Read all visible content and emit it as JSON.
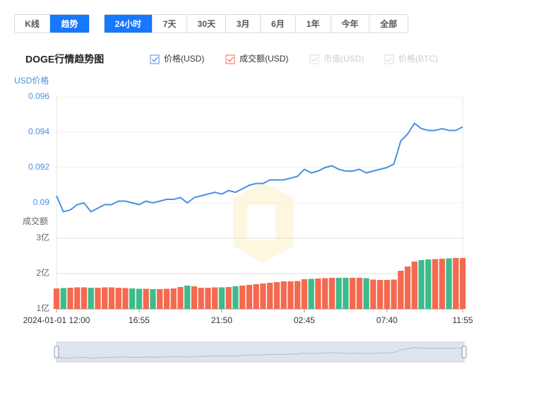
{
  "view_tabs": [
    "K线",
    "趋势"
  ],
  "range_tabs": [
    "24小时",
    "7天",
    "30天",
    "3月",
    "6月",
    "1年",
    "今年",
    "全部"
  ],
  "chart_data": {
    "type": "line",
    "title": "DOGE行情趋势图",
    "ylabel": "USD价格",
    "y2label": "成交额",
    "categories": [
      "2024-01-01 12:00",
      null,
      null,
      null,
      null,
      null,
      null,
      null,
      null,
      null,
      null,
      null,
      "16:55",
      null,
      null,
      null,
      null,
      null,
      null,
      null,
      null,
      null,
      null,
      null,
      "21:50",
      null,
      null,
      null,
      null,
      null,
      null,
      null,
      null,
      null,
      null,
      null,
      "02:45",
      null,
      null,
      null,
      null,
      null,
      null,
      null,
      null,
      null,
      null,
      null,
      "07:40",
      null,
      null,
      null,
      null,
      null,
      null,
      null,
      null,
      null,
      null,
      "11:55"
    ],
    "series": [
      {
        "name": "价格(USD)",
        "type": "line",
        "color": "#4a90e2",
        "values": [
          0.0904,
          0.0895,
          0.0896,
          0.0899,
          0.09,
          0.0895,
          0.0897,
          0.0899,
          0.0899,
          0.0901,
          0.0901,
          0.09,
          0.0899,
          0.0901,
          0.09,
          0.0901,
          0.0902,
          0.0902,
          0.0903,
          0.09,
          0.0903,
          0.0904,
          0.0905,
          0.0906,
          0.0905,
          0.0907,
          0.0906,
          0.0908,
          0.091,
          0.0911,
          0.0911,
          0.0913,
          0.0913,
          0.0913,
          0.0914,
          0.0915,
          0.0919,
          0.0917,
          0.0918,
          0.092,
          0.0921,
          0.0919,
          0.0918,
          0.0918,
          0.0919,
          0.0917,
          0.0918,
          0.0919,
          0.092,
          0.0922,
          0.0935,
          0.0939,
          0.0945,
          0.0942,
          0.0941,
          0.0941,
          0.0942,
          0.0941,
          0.0941,
          0.0943
        ]
      },
      {
        "name": "成交额(USD)",
        "type": "bar",
        "axis": "y2",
        "color": "#f4694f",
        "down_color": "#3dbb8a",
        "values": [
          1.58,
          1.59,
          1.6,
          1.61,
          1.61,
          1.6,
          1.6,
          1.61,
          1.61,
          1.6,
          1.59,
          1.58,
          1.57,
          1.57,
          1.56,
          1.56,
          1.57,
          1.58,
          1.62,
          1.66,
          1.64,
          1.6,
          1.6,
          1.61,
          1.61,
          1.62,
          1.64,
          1.66,
          1.68,
          1.7,
          1.72,
          1.74,
          1.76,
          1.78,
          1.78,
          1.79,
          1.84,
          1.85,
          1.86,
          1.87,
          1.88,
          1.88,
          1.88,
          1.88,
          1.88,
          1.87,
          1.83,
          1.82,
          1.82,
          1.83,
          2.08,
          2.2,
          2.34,
          2.38,
          2.4,
          2.41,
          2.42,
          2.43,
          2.44,
          2.44
        ]
      }
    ],
    "legend_disabled": [
      "市值(USD)",
      "价格(BTC)"
    ],
    "ylim": [
      0.0888,
      0.096
    ],
    "yticks": [
      0.09,
      0.092,
      0.094,
      0.096
    ],
    "y2lim": [
      1,
      3
    ],
    "y2ticks": [
      {
        "value": 1,
        "label": "1亿"
      },
      {
        "value": 2,
        "label": "2亿"
      },
      {
        "value": 3,
        "label": "3亿"
      }
    ],
    "grid": true
  }
}
